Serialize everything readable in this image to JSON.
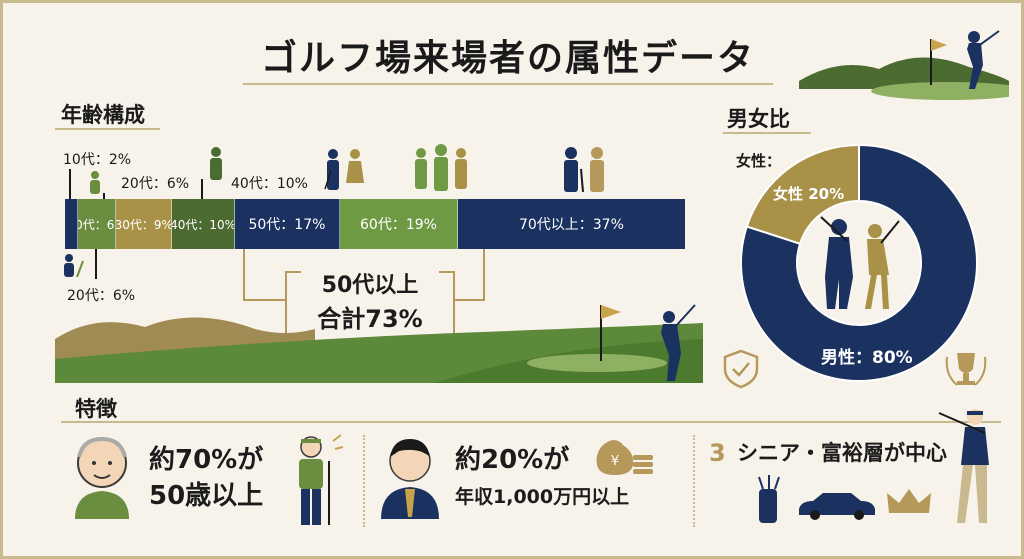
{
  "title": "ゴルフ場来場者の属性データ",
  "age_section": {
    "heading": "年齢構成",
    "segments": [
      {
        "label": "",
        "value": 2,
        "color": "#1b3160"
      },
      {
        "label": "20代：6%",
        "value": 6,
        "color": "#6b8d3f"
      },
      {
        "label": "30代：9%",
        "value": 9,
        "color": "#a99248"
      },
      {
        "label": "40代：10%",
        "value": 10,
        "color": "#4c6b30"
      },
      {
        "label": "50代：17%",
        "value": 17,
        "color": "#1b3160"
      },
      {
        "label": "60代：19%",
        "value": 19,
        "color": "#6f9a44"
      },
      {
        "label": "70代以上：37%",
        "value": 37,
        "color": "#1b3160"
      }
    ],
    "annotations": {
      "teens": "10代：2%",
      "twenties_top": "20代：6%",
      "forties": "40代：10%",
      "twenties_bottom": "20代：6%"
    },
    "total_line1": "50代以上",
    "total_line2": "合計73%"
  },
  "gender_section": {
    "heading": "男女比",
    "female_caption": "女性：",
    "female_label": "女性 20%",
    "male_label": "男性：80%",
    "female_value": 20,
    "male_value": 80,
    "male_color": "#1b3160",
    "female_color": "#a99248"
  },
  "features_section": {
    "heading": "特徴",
    "item1_line1": "約70%が",
    "item1_line2": "50歳以上",
    "item2_line1": "約20%が",
    "item2_line2": "年収1,000万円以上",
    "item3_num": "3",
    "item3_text": "シニア・富裕層が中心"
  },
  "colors": {
    "navy": "#1b3160",
    "green": "#6f9a44",
    "gold": "#a99248",
    "bronze": "#b5985a"
  }
}
